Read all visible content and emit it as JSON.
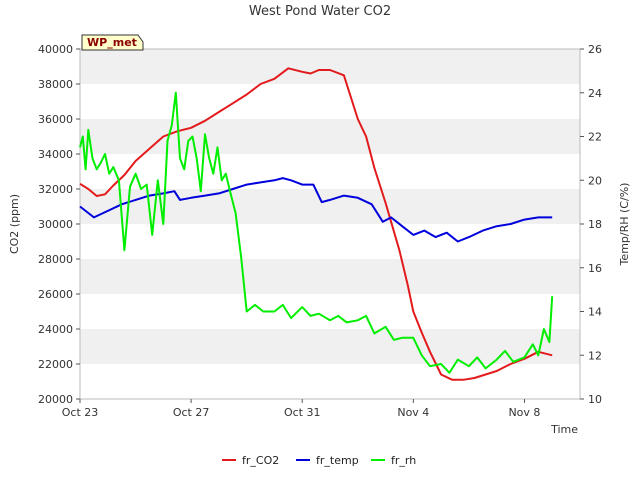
{
  "chart_data": {
    "type": "line",
    "title": "West Pond Water CO2",
    "xlabel": "Time",
    "ylabel": "CO2 (ppm)",
    "y2label": "Temp/RH (C/%)",
    "badge": "WP_met",
    "x_ticks": [
      "Oct 23",
      "Oct 27",
      "Oct 31",
      "Nov 4",
      "Nov 8"
    ],
    "x_tick_days": [
      0,
      4,
      8,
      12,
      16
    ],
    "x_range_days": [
      0,
      18
    ],
    "y_ticks": [
      20000,
      22000,
      24000,
      26000,
      28000,
      30000,
      32000,
      34000,
      36000,
      38000,
      40000
    ],
    "ylim": [
      20000,
      40000
    ],
    "y2_ticks": [
      10,
      12,
      14,
      16,
      18,
      20,
      22,
      24,
      26
    ],
    "y2lim": [
      10,
      26
    ],
    "grid": "horizontal bands",
    "legend_position": "bottom",
    "series": [
      {
        "name": "fr_CO2",
        "axis": "left",
        "color": "#e31a1c",
        "x": [
          0,
          0.3,
          0.6,
          0.9,
          1.2,
          1.6,
          2.0,
          2.5,
          3.0,
          3.5,
          4.0,
          4.5,
          5.0,
          5.5,
          6.0,
          6.5,
          7.0,
          7.5,
          8.0,
          8.3,
          8.6,
          9.0,
          9.5,
          10.0,
          10.3,
          10.6,
          11.0,
          11.5,
          11.8,
          12.0,
          12.3,
          12.6,
          13.0,
          13.4,
          13.8,
          14.2,
          14.6,
          15.0,
          15.5,
          16.0,
          16.5,
          17.0
        ],
        "y": [
          32300,
          32000,
          31600,
          31700,
          32200,
          32800,
          33600,
          34300,
          35000,
          35300,
          35500,
          35900,
          36400,
          36900,
          37400,
          38000,
          38300,
          38900,
          38700,
          38600,
          38800,
          38800,
          38500,
          36000,
          35000,
          33200,
          31200,
          28500,
          26500,
          25000,
          23800,
          22700,
          21400,
          21100,
          21100,
          21200,
          21400,
          21600,
          22000,
          22300,
          22700,
          22500
        ]
      },
      {
        "name": "fr_temp",
        "axis": "right",
        "color": "#0000dd",
        "x": [
          0,
          0.2,
          0.5,
          1.0,
          1.5,
          2.0,
          2.5,
          3.0,
          3.4,
          3.6,
          4.0,
          4.5,
          5.0,
          5.5,
          6.0,
          6.5,
          7.0,
          7.3,
          7.6,
          8.0,
          8.4,
          8.7,
          9.0,
          9.5,
          10.0,
          10.5,
          10.9,
          11.2,
          11.6,
          12.0,
          12.4,
          12.8,
          13.2,
          13.6,
          14.0,
          14.5,
          15.0,
          15.5,
          16.0,
          16.5,
          17.0
        ],
        "y": [
          18.8,
          18.6,
          18.3,
          18.6,
          18.9,
          19.1,
          19.3,
          19.4,
          19.5,
          19.1,
          19.2,
          19.3,
          19.4,
          19.6,
          19.8,
          19.9,
          20.0,
          20.1,
          20.0,
          19.8,
          19.8,
          19.0,
          19.1,
          19.3,
          19.2,
          18.9,
          18.1,
          18.3,
          17.9,
          17.5,
          17.7,
          17.4,
          17.6,
          17.2,
          17.4,
          17.7,
          17.9,
          18.0,
          18.2,
          18.3,
          18.3
        ]
      },
      {
        "name": "fr_rh",
        "axis": "right",
        "color": "#00ee00",
        "x": [
          0,
          0.1,
          0.2,
          0.3,
          0.45,
          0.6,
          0.75,
          0.9,
          1.05,
          1.2,
          1.4,
          1.6,
          1.8,
          2.0,
          2.2,
          2.4,
          2.6,
          2.8,
          3.0,
          3.15,
          3.3,
          3.45,
          3.6,
          3.75,
          3.9,
          4.05,
          4.2,
          4.35,
          4.5,
          4.65,
          4.8,
          4.95,
          5.1,
          5.25,
          5.4,
          5.6,
          5.8,
          6.0,
          6.3,
          6.6,
          7.0,
          7.3,
          7.6,
          8.0,
          8.3,
          8.6,
          9.0,
          9.3,
          9.6,
          10.0,
          10.3,
          10.6,
          11.0,
          11.3,
          11.6,
          12.0,
          12.3,
          12.6,
          13.0,
          13.3,
          13.6,
          14.0,
          14.3,
          14.6,
          15.0,
          15.3,
          15.6,
          16.0,
          16.3,
          16.5,
          16.7,
          16.9,
          17.0
        ],
        "y": [
          21.5,
          22.0,
          20.5,
          22.3,
          21.0,
          20.5,
          20.8,
          21.2,
          20.3,
          20.6,
          20.0,
          16.8,
          19.7,
          20.3,
          19.6,
          19.8,
          17.5,
          20.0,
          18.0,
          21.8,
          22.5,
          24.0,
          21.0,
          20.5,
          21.8,
          22.0,
          21.0,
          19.5,
          22.1,
          21.0,
          20.3,
          21.5,
          20.0,
          20.3,
          19.5,
          18.5,
          16.5,
          14.0,
          14.3,
          14.0,
          14.0,
          14.3,
          13.7,
          14.2,
          13.8,
          13.9,
          13.6,
          13.8,
          13.5,
          13.6,
          13.8,
          13.0,
          13.3,
          12.7,
          12.8,
          12.8,
          12.0,
          11.5,
          11.6,
          11.2,
          11.8,
          11.5,
          11.9,
          11.4,
          11.8,
          12.2,
          11.7,
          11.9,
          12.5,
          12.0,
          13.2,
          12.6,
          14.7
        ]
      }
    ]
  }
}
